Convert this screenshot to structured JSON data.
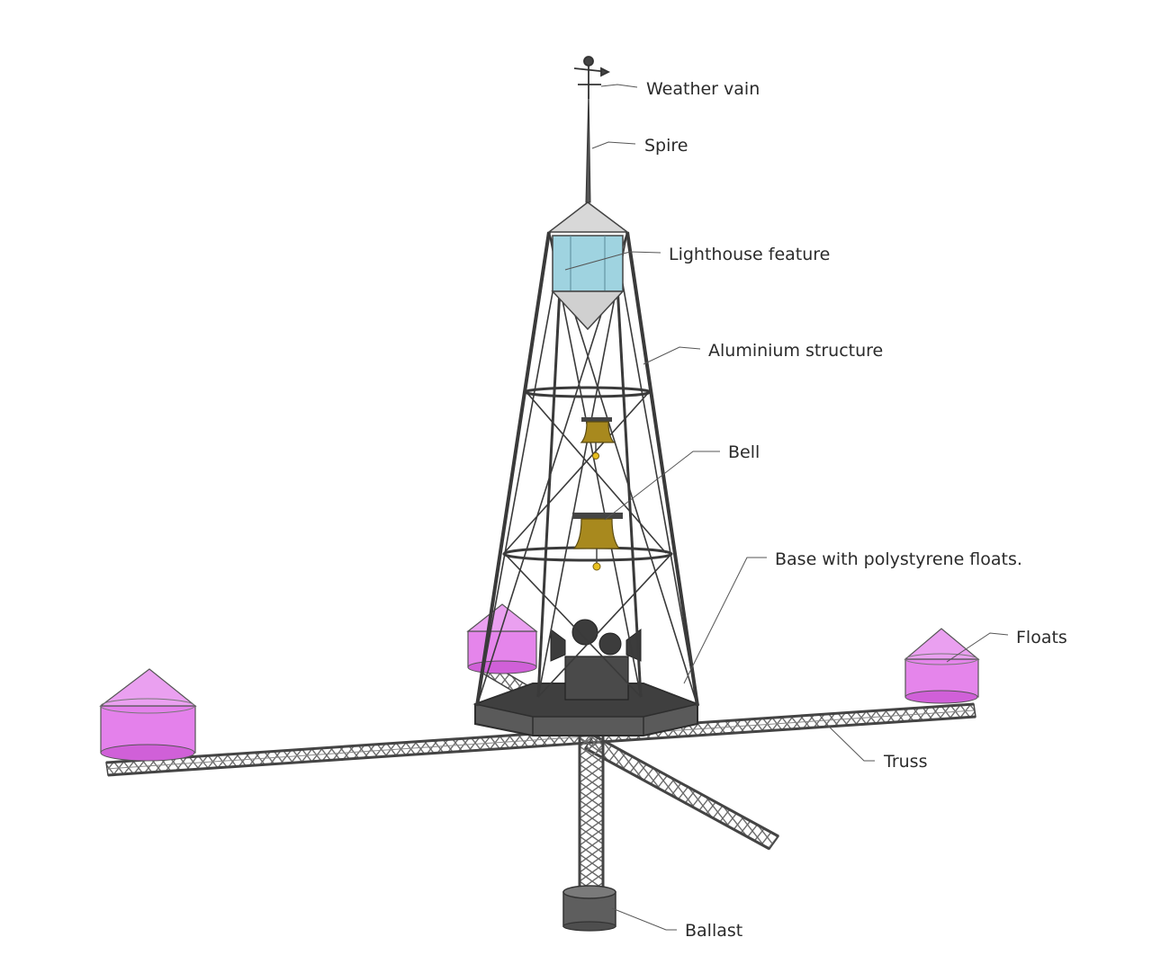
{
  "labels": {
    "weather_vain": "Weather vain",
    "spire": "Spire",
    "lighthouse_feature": "Lighthouse feature",
    "aluminium_structure": "Aluminium structure",
    "bell": "Bell",
    "base": "Base with polystyrene floats.",
    "floats": "Floats",
    "truss": "Truss",
    "ballast": "Ballast"
  },
  "colors": {
    "background": "#ffffff",
    "float_fill": "#e070e8",
    "float_top": "#eaa0f0",
    "lighthouse_glass": "#9fd3e0",
    "bell": "#a8891e",
    "structure": "#3a3a3a",
    "base_deck": "#5a5a5a",
    "ballast": "#5e5e5e",
    "leader_line": "#555555"
  }
}
